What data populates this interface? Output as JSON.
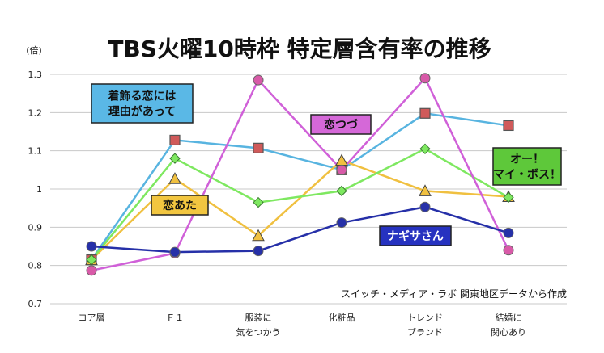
{
  "chart_data": {
    "type": "line",
    "title": "TBS火曜10時枠 特定層含有率の推移",
    "ylabel": "(倍)",
    "ylim": [
      0.7,
      1.3
    ],
    "yticks": [
      "0.7",
      "0.8",
      "0.9",
      "1",
      "1.1",
      "1.2",
      "1.3"
    ],
    "grid": true,
    "categories": [
      [
        "コア層"
      ],
      [
        "Ｆ１"
      ],
      [
        "服装に",
        "気をつかう"
      ],
      [
        "化粧品"
      ],
      [
        "トレンド",
        "ブランド"
      ],
      [
        "結婚に",
        "関心あり"
      ]
    ],
    "series": [
      {
        "name": "着飾る恋には\n理由があって",
        "color": "#58b4e0",
        "marker": "square",
        "values": [
          0.815,
          1.128,
          1.107,
          1.05,
          1.198,
          1.166
        ]
      },
      {
        "name": "恋あた",
        "color": "#f0c040",
        "marker": "triangle",
        "values": [
          0.815,
          1.027,
          0.878,
          1.075,
          0.995,
          0.98
        ]
      },
      {
        "name": "オー！\nマイ・ボス！",
        "color": "#7ee860",
        "marker": "diamond",
        "values": [
          0.815,
          1.08,
          0.965,
          0.995,
          1.105,
          0.978
        ]
      },
      {
        "name": "恋つづ",
        "color": "#d060d8",
        "marker": "circle",
        "values": [
          0.787,
          0.832,
          1.285,
          1.05,
          1.29,
          0.84
        ]
      },
      {
        "name": "ナギサさん",
        "color": "#2630a8",
        "marker": "circle",
        "values": [
          0.85,
          0.835,
          0.838,
          0.912,
          0.953,
          0.885
        ]
      }
    ],
    "source_note": "スイッチ・メディア・ラボ 関東地区データから作成"
  }
}
